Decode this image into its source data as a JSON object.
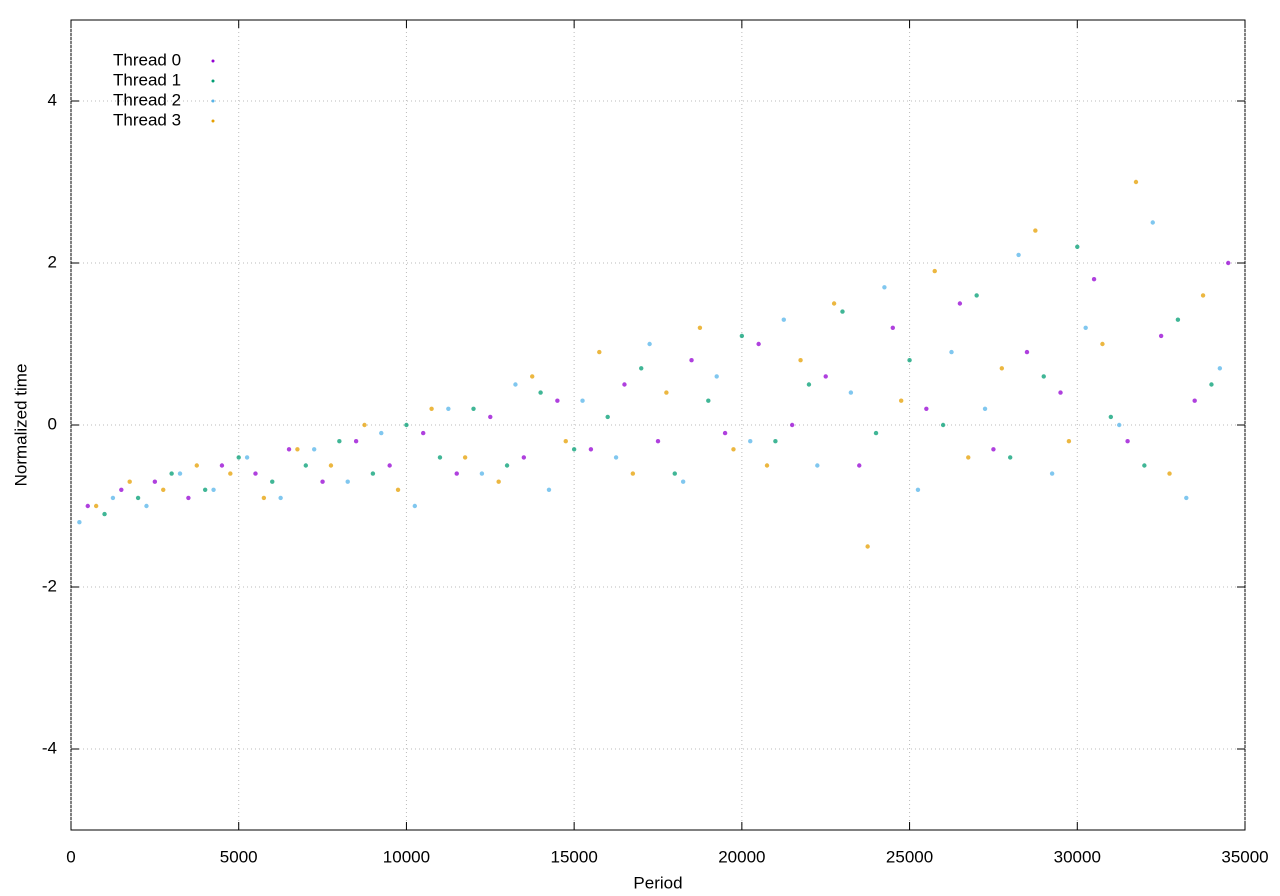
{
  "chart_data": {
    "type": "scatter",
    "x_label": "Period",
    "y_label": "Normalized time",
    "xlim": [
      0,
      35000
    ],
    "ylim": [
      -5,
      5
    ],
    "xticks": [
      0,
      5000,
      10000,
      15000,
      20000,
      25000,
      30000,
      35000
    ],
    "yticks": [
      -4,
      -2,
      0,
      2,
      4
    ],
    "grid": true,
    "legend": "top-left",
    "series": [
      {
        "name": "Thread 0",
        "color": "#9400d3",
        "x": [
          500,
          1500,
          2500,
          3500,
          4500,
          5500,
          6500,
          7500,
          8500,
          9500,
          10500,
          11500,
          12500,
          13500,
          14500,
          15500,
          16500,
          17500,
          18500,
          19500,
          20500,
          21500,
          22500,
          23500,
          24500,
          25500,
          26500,
          27500,
          28500,
          29500,
          30500,
          31500,
          32500,
          33500,
          34500
        ],
        "values": [
          -1.0,
          -0.8,
          -0.7,
          -0.9,
          -0.5,
          -0.6,
          -0.3,
          -0.7,
          -0.2,
          -0.5,
          -0.1,
          -0.6,
          0.1,
          -0.4,
          0.3,
          -0.3,
          0.5,
          -0.2,
          0.8,
          -0.1,
          1.0,
          0.0,
          0.6,
          -0.5,
          1.2,
          0.2,
          1.5,
          -0.3,
          0.9,
          0.4,
          1.8,
          -0.2,
          1.1,
          0.3,
          2.0
        ]
      },
      {
        "name": "Thread 1",
        "color": "#009e73",
        "x": [
          1000,
          2000,
          3000,
          4000,
          5000,
          6000,
          7000,
          8000,
          9000,
          10000,
          11000,
          12000,
          13000,
          14000,
          15000,
          16000,
          17000,
          18000,
          19000,
          20000,
          21000,
          22000,
          23000,
          24000,
          25000,
          26000,
          27000,
          28000,
          29000,
          30000,
          31000,
          32000,
          33000,
          34000
        ],
        "values": [
          -1.1,
          -0.9,
          -0.6,
          -0.8,
          -0.4,
          -0.7,
          -0.5,
          -0.2,
          -0.6,
          0.0,
          -0.4,
          0.2,
          -0.5,
          0.4,
          -0.3,
          0.1,
          0.7,
          -0.6,
          0.3,
          1.1,
          -0.2,
          0.5,
          1.4,
          -0.1,
          0.8,
          0.0,
          1.6,
          -0.4,
          0.6,
          2.2,
          0.1,
          -0.5,
          1.3,
          0.5
        ]
      },
      {
        "name": "Thread 2",
        "color": "#56b4e9",
        "x": [
          250,
          1250,
          2250,
          3250,
          4250,
          5250,
          6250,
          7250,
          8250,
          9250,
          10250,
          11250,
          12250,
          13250,
          14250,
          15250,
          16250,
          17250,
          18250,
          19250,
          20250,
          21250,
          22250,
          23250,
          24250,
          25250,
          26250,
          27250,
          28250,
          29250,
          30250,
          31250,
          32250,
          33250,
          34250
        ],
        "values": [
          -1.2,
          -0.9,
          -1.0,
          -0.6,
          -0.8,
          -0.4,
          -0.9,
          -0.3,
          -0.7,
          -0.1,
          -1.0,
          0.2,
          -0.6,
          0.5,
          -0.8,
          0.3,
          -0.4,
          1.0,
          -0.7,
          0.6,
          -0.2,
          1.3,
          -0.5,
          0.4,
          1.7,
          -0.8,
          0.9,
          0.2,
          2.1,
          -0.6,
          1.2,
          0.0,
          2.5,
          -0.9,
          0.7
        ]
      },
      {
        "name": "Thread 3",
        "color": "#e69f00",
        "x": [
          750,
          1750,
          2750,
          3750,
          4750,
          5750,
          6750,
          7750,
          8750,
          9750,
          10750,
          11750,
          12750,
          13750,
          14750,
          15750,
          16750,
          17750,
          18750,
          19750,
          20750,
          21750,
          22750,
          23750,
          24750,
          25750,
          26750,
          27750,
          28750,
          29750,
          30750,
          31750,
          32750,
          33750
        ],
        "values": [
          -1.0,
          -0.7,
          -0.8,
          -0.5,
          -0.6,
          -0.9,
          -0.3,
          -0.5,
          0.0,
          -0.8,
          0.2,
          -0.4,
          -0.7,
          0.6,
          -0.2,
          0.9,
          -0.6,
          0.4,
          1.2,
          -0.3,
          -0.5,
          0.8,
          1.5,
          -1.5,
          0.3,
          1.9,
          -0.4,
          0.7,
          2.4,
          -0.2,
          1.0,
          3.0,
          -0.6,
          1.6
        ]
      }
    ]
  }
}
